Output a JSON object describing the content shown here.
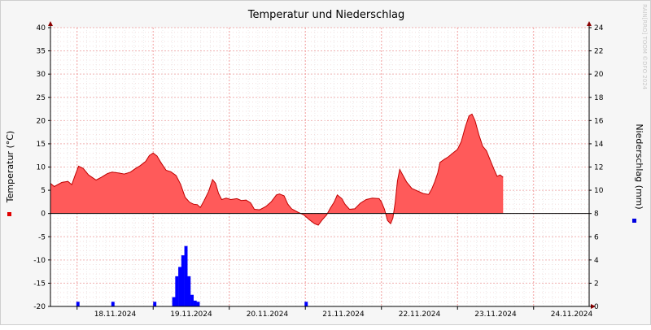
{
  "chart_data": {
    "type": "area",
    "title": "Temperatur und Niederschlag",
    "y_left_label": "Temperatur (°C)",
    "y_right_label": "Niederschlag (mm)",
    "y_left_lim": [
      -20,
      40
    ],
    "y_right_lim": [
      0,
      24
    ],
    "y_left_ticks": [
      "40",
      "35",
      "30",
      "25",
      "20",
      "15",
      "10",
      "5",
      "0",
      "-5",
      "-10",
      "-15",
      "-20"
    ],
    "y_right_ticks": [
      "24",
      "22",
      "20",
      "18",
      "16",
      "14",
      "12",
      "10",
      "8",
      "6",
      "4",
      "2",
      "0"
    ],
    "x_ticks": [
      "18.11.2024",
      "19.11.2024",
      "20.11.2024",
      "21.11.2024",
      "22.11.2024",
      "23.11.2024",
      "24.11.2024"
    ],
    "x_range_days": [
      17.65,
      24.73
    ],
    "grid": true,
    "watermark": "RAIN[RRO] TOOM ©DFO 2024",
    "colors": {
      "temperature_fill": "#ff5a5a",
      "temperature_line": "#c00000",
      "precip_bar": "#0000ff",
      "legend_temp": "#e00000",
      "legend_precip": "#0000e0"
    },
    "series": [
      {
        "name": "Temperatur",
        "kind": "area",
        "axis": "left",
        "points": [
          [
            17.65,
            6.5
          ],
          [
            17.7,
            5.8
          ],
          [
            17.8,
            6.7
          ],
          [
            17.88,
            6.9
          ],
          [
            17.93,
            6.2
          ],
          [
            17.98,
            8.5
          ],
          [
            18.02,
            10.2
          ],
          [
            18.08,
            9.7
          ],
          [
            18.15,
            8.3
          ],
          [
            18.25,
            7.2
          ],
          [
            18.32,
            7.8
          ],
          [
            18.4,
            8.6
          ],
          [
            18.46,
            8.9
          ],
          [
            18.55,
            8.7
          ],
          [
            18.62,
            8.5
          ],
          [
            18.7,
            8.9
          ],
          [
            18.76,
            9.6
          ],
          [
            18.83,
            10.3
          ],
          [
            18.9,
            11.2
          ],
          [
            18.95,
            12.5
          ],
          [
            19.0,
            13.0
          ],
          [
            19.05,
            12.4
          ],
          [
            19.1,
            11.0
          ],
          [
            19.17,
            9.3
          ],
          [
            19.23,
            9.0
          ],
          [
            19.3,
            8.2
          ],
          [
            19.36,
            6.3
          ],
          [
            19.42,
            3.5
          ],
          [
            19.48,
            2.4
          ],
          [
            19.53,
            2.0
          ],
          [
            19.58,
            1.9
          ],
          [
            19.62,
            1.3
          ],
          [
            19.67,
            2.8
          ],
          [
            19.73,
            4.8
          ],
          [
            19.78,
            7.3
          ],
          [
            19.82,
            6.5
          ],
          [
            19.86,
            4.3
          ],
          [
            19.9,
            3.0
          ],
          [
            19.96,
            3.3
          ],
          [
            20.02,
            3.0
          ],
          [
            20.1,
            3.2
          ],
          [
            20.16,
            2.8
          ],
          [
            20.22,
            2.9
          ],
          [
            20.28,
            2.3
          ],
          [
            20.33,
            0.9
          ],
          [
            20.4,
            0.8
          ],
          [
            20.48,
            1.5
          ],
          [
            20.55,
            2.5
          ],
          [
            20.62,
            4.0
          ],
          [
            20.66,
            4.2
          ],
          [
            20.72,
            3.8
          ],
          [
            20.77,
            2.0
          ],
          [
            20.82,
            1.0
          ],
          [
            20.9,
            0.3
          ],
          [
            20.98,
            -0.3
          ],
          [
            21.05,
            -1.3
          ],
          [
            21.12,
            -2.2
          ],
          [
            21.17,
            -2.5
          ],
          [
            21.22,
            -1.4
          ],
          [
            21.28,
            -0.3
          ],
          [
            21.33,
            1.2
          ],
          [
            21.38,
            2.5
          ],
          [
            21.42,
            4.0
          ],
          [
            21.48,
            3.2
          ],
          [
            21.52,
            2.0
          ],
          [
            21.58,
            0.9
          ],
          [
            21.65,
            1.0
          ],
          [
            21.72,
            2.2
          ],
          [
            21.8,
            3.0
          ],
          [
            21.88,
            3.3
          ],
          [
            21.97,
            3.2
          ],
          [
            22.0,
            2.5
          ],
          [
            22.04,
            0.9
          ],
          [
            22.08,
            -1.5
          ],
          [
            22.12,
            -2.2
          ],
          [
            22.15,
            -1.0
          ],
          [
            22.18,
            2.3
          ],
          [
            22.21,
            7.0
          ],
          [
            22.24,
            9.5
          ],
          [
            22.28,
            8.3
          ],
          [
            22.33,
            6.8
          ],
          [
            22.4,
            5.4
          ],
          [
            22.48,
            4.8
          ],
          [
            22.55,
            4.3
          ],
          [
            22.62,
            4.1
          ],
          [
            22.66,
            5.2
          ],
          [
            22.7,
            6.8
          ],
          [
            22.74,
            8.7
          ],
          [
            22.77,
            11.0
          ],
          [
            22.82,
            11.6
          ],
          [
            22.88,
            12.2
          ],
          [
            22.94,
            13.0
          ],
          [
            23.0,
            13.8
          ],
          [
            23.05,
            15.5
          ],
          [
            23.1,
            18.5
          ],
          [
            23.15,
            21.0
          ],
          [
            23.19,
            21.4
          ],
          [
            23.23,
            20.0
          ],
          [
            23.28,
            17.0
          ],
          [
            23.33,
            14.5
          ],
          [
            23.38,
            13.5
          ],
          [
            23.43,
            11.5
          ],
          [
            23.48,
            9.5
          ],
          [
            23.52,
            8.0
          ],
          [
            23.56,
            8.3
          ],
          [
            23.6,
            7.8
          ]
        ]
      },
      {
        "name": "Niederschlag",
        "kind": "bar",
        "axis": "right",
        "bar_width_days": 0.042,
        "points": [
          [
            17.99,
            0.4
          ],
          [
            18.45,
            0.4
          ],
          [
            19.0,
            0.4
          ],
          [
            19.25,
            0.8
          ],
          [
            19.29,
            2.6
          ],
          [
            19.33,
            3.4
          ],
          [
            19.37,
            4.4
          ],
          [
            19.41,
            5.2
          ],
          [
            19.45,
            2.6
          ],
          [
            19.49,
            1.0
          ],
          [
            19.53,
            0.5
          ],
          [
            19.57,
            0.4
          ],
          [
            20.99,
            0.4
          ]
        ]
      }
    ]
  }
}
